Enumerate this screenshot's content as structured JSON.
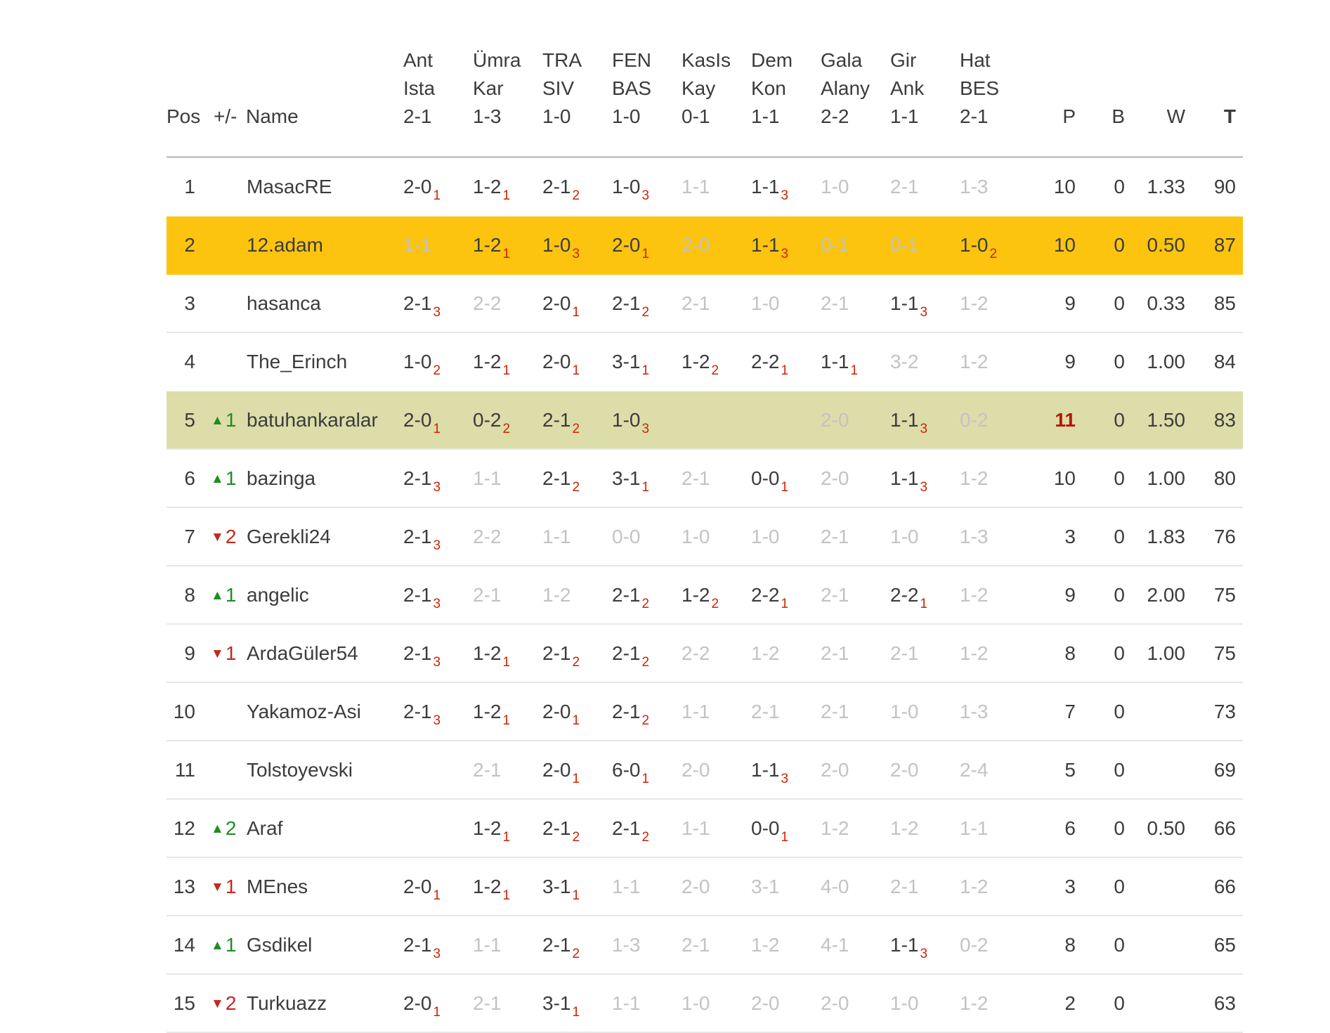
{
  "table": {
    "columns": {
      "pos": "Pos",
      "change": "+/-",
      "name": "Name",
      "p": "P",
      "b": "B",
      "w": "W",
      "t": "T"
    },
    "matches": [
      {
        "home": "Ant",
        "away": "Ista",
        "score": "2-1"
      },
      {
        "home": "Ümra",
        "away": "Kar",
        "score": "1-3"
      },
      {
        "home": "TRA",
        "away": "SIV",
        "score": "1-0"
      },
      {
        "home": "FEN",
        "away": "BAS",
        "score": "1-0"
      },
      {
        "home": "KasIs",
        "away": "Kay",
        "score": "0-1"
      },
      {
        "home": "Dem",
        "away": "Kon",
        "score": "1-1"
      },
      {
        "home": "Gala",
        "away": "Alany",
        "score": "2-2"
      },
      {
        "home": "Gir",
        "away": "Ank",
        "score": "1-1"
      },
      {
        "home": "Hat",
        "away": "BES",
        "score": "2-1"
      }
    ],
    "rows": [
      {
        "pos": "1",
        "change": null,
        "name": "MasacRE",
        "predictions": [
          [
            "2-0",
            1
          ],
          [
            "1-2",
            1
          ],
          [
            "2-1",
            2
          ],
          [
            "1-0",
            3
          ],
          [
            "1-1",
            0
          ],
          [
            "1-1",
            3
          ],
          [
            "1-0",
            0
          ],
          [
            "2-1",
            0
          ],
          [
            "1-3",
            0
          ]
        ],
        "p": "10",
        "b": "0",
        "w": "1.33",
        "t": "90",
        "highlight": null,
        "p_hot": false
      },
      {
        "pos": "2",
        "change": null,
        "name": "12.adam",
        "predictions": [
          [
            "1-1",
            0
          ],
          [
            "1-2",
            1
          ],
          [
            "1-0",
            3
          ],
          [
            "2-0",
            1
          ],
          [
            "2-0",
            0
          ],
          [
            "1-1",
            3
          ],
          [
            "0-1",
            0
          ],
          [
            "0-1",
            0
          ],
          [
            "1-0",
            2
          ]
        ],
        "p": "10",
        "b": "0",
        "w": "0.50",
        "t": "87",
        "highlight": "yellow",
        "p_hot": false
      },
      {
        "pos": "3",
        "change": null,
        "name": "hasanca",
        "predictions": [
          [
            "2-1",
            3
          ],
          [
            "2-2",
            0
          ],
          [
            "2-0",
            1
          ],
          [
            "2-1",
            2
          ],
          [
            "2-1",
            0
          ],
          [
            "1-0",
            0
          ],
          [
            "2-1",
            0
          ],
          [
            "1-1",
            3
          ],
          [
            "1-2",
            0
          ]
        ],
        "p": "9",
        "b": "0",
        "w": "0.33",
        "t": "85",
        "highlight": null,
        "p_hot": false
      },
      {
        "pos": "4",
        "change": null,
        "name": "The_Erinch",
        "predictions": [
          [
            "1-0",
            2
          ],
          [
            "1-2",
            1
          ],
          [
            "2-0",
            1
          ],
          [
            "3-1",
            1
          ],
          [
            "1-2",
            2
          ],
          [
            "2-2",
            1
          ],
          [
            "1-1",
            1
          ],
          [
            "3-2",
            0
          ],
          [
            "1-2",
            0
          ]
        ],
        "p": "9",
        "b": "0",
        "w": "1.00",
        "t": "84",
        "highlight": null,
        "p_hot": false
      },
      {
        "pos": "5",
        "change": {
          "dir": "up",
          "value": "1"
        },
        "name": "batuhankaralar",
        "predictions": [
          [
            "2-0",
            1
          ],
          [
            "0-2",
            2
          ],
          [
            "2-1",
            2
          ],
          [
            "1-0",
            3
          ],
          null,
          null,
          [
            "2-0",
            0
          ],
          [
            "1-1",
            3
          ],
          [
            "0-2",
            0
          ]
        ],
        "p": "11",
        "b": "0",
        "w": "1.50",
        "t": "83",
        "highlight": "green",
        "p_hot": true
      },
      {
        "pos": "6",
        "change": {
          "dir": "up",
          "value": "1"
        },
        "name": "bazinga",
        "predictions": [
          [
            "2-1",
            3
          ],
          [
            "1-1",
            0
          ],
          [
            "2-1",
            2
          ],
          [
            "3-1",
            1
          ],
          [
            "2-1",
            0
          ],
          [
            "0-0",
            1
          ],
          [
            "2-0",
            0
          ],
          [
            "1-1",
            3
          ],
          [
            "1-2",
            0
          ]
        ],
        "p": "10",
        "b": "0",
        "w": "1.00",
        "t": "80",
        "highlight": null,
        "p_hot": false
      },
      {
        "pos": "7",
        "change": {
          "dir": "down",
          "value": "2"
        },
        "name": "Gerekli24",
        "predictions": [
          [
            "2-1",
            3
          ],
          [
            "2-2",
            0
          ],
          [
            "1-1",
            0
          ],
          [
            "0-0",
            0
          ],
          [
            "1-0",
            0
          ],
          [
            "1-0",
            0
          ],
          [
            "2-1",
            0
          ],
          [
            "1-0",
            0
          ],
          [
            "1-3",
            0
          ]
        ],
        "p": "3",
        "b": "0",
        "w": "1.83",
        "t": "76",
        "highlight": null,
        "p_hot": false
      },
      {
        "pos": "8",
        "change": {
          "dir": "up",
          "value": "1"
        },
        "name": "angelic",
        "predictions": [
          [
            "2-1",
            3
          ],
          [
            "2-1",
            0
          ],
          [
            "1-2",
            0
          ],
          [
            "2-1",
            2
          ],
          [
            "1-2",
            2
          ],
          [
            "2-2",
            1
          ],
          [
            "2-1",
            0
          ],
          [
            "2-2",
            1
          ],
          [
            "1-2",
            0
          ]
        ],
        "p": "9",
        "b": "0",
        "w": "2.00",
        "t": "75",
        "highlight": null,
        "p_hot": false
      },
      {
        "pos": "9",
        "change": {
          "dir": "down",
          "value": "1"
        },
        "name": "ArdaGüler54",
        "predictions": [
          [
            "2-1",
            3
          ],
          [
            "1-2",
            1
          ],
          [
            "2-1",
            2
          ],
          [
            "2-1",
            2
          ],
          [
            "2-2",
            0
          ],
          [
            "1-2",
            0
          ],
          [
            "2-1",
            0
          ],
          [
            "2-1",
            0
          ],
          [
            "1-2",
            0
          ]
        ],
        "p": "8",
        "b": "0",
        "w": "1.00",
        "t": "75",
        "highlight": null,
        "p_hot": false
      },
      {
        "pos": "10",
        "change": null,
        "name": "Yakamoz-Asi",
        "predictions": [
          [
            "2-1",
            3
          ],
          [
            "1-2",
            1
          ],
          [
            "2-0",
            1
          ],
          [
            "2-1",
            2
          ],
          [
            "1-1",
            0
          ],
          [
            "2-1",
            0
          ],
          [
            "2-1",
            0
          ],
          [
            "1-0",
            0
          ],
          [
            "1-3",
            0
          ]
        ],
        "p": "7",
        "b": "0",
        "w": "",
        "t": "73",
        "highlight": null,
        "p_hot": false
      },
      {
        "pos": "11",
        "change": null,
        "name": "Tolstoyevski",
        "predictions": [
          null,
          [
            "2-1",
            0
          ],
          [
            "2-0",
            1
          ],
          [
            "6-0",
            1
          ],
          [
            "2-0",
            0
          ],
          [
            "1-1",
            3
          ],
          [
            "2-0",
            0
          ],
          [
            "2-0",
            0
          ],
          [
            "2-4",
            0
          ]
        ],
        "p": "5",
        "b": "0",
        "w": "",
        "t": "69",
        "highlight": null,
        "p_hot": false
      },
      {
        "pos": "12",
        "change": {
          "dir": "up",
          "value": "2"
        },
        "name": "Araf",
        "predictions": [
          null,
          [
            "1-2",
            1
          ],
          [
            "2-1",
            2
          ],
          [
            "2-1",
            2
          ],
          [
            "1-1",
            0
          ],
          [
            "0-0",
            1
          ],
          [
            "1-2",
            0
          ],
          [
            "1-2",
            0
          ],
          [
            "1-1",
            0
          ]
        ],
        "p": "6",
        "b": "0",
        "w": "0.50",
        "t": "66",
        "highlight": null,
        "p_hot": false
      },
      {
        "pos": "13",
        "change": {
          "dir": "down",
          "value": "1"
        },
        "name": "MEnes",
        "predictions": [
          [
            "2-0",
            1
          ],
          [
            "1-2",
            1
          ],
          [
            "3-1",
            1
          ],
          [
            "1-1",
            0
          ],
          [
            "2-0",
            0
          ],
          [
            "3-1",
            0
          ],
          [
            "4-0",
            0
          ],
          [
            "2-1",
            0
          ],
          [
            "1-2",
            0
          ]
        ],
        "p": "3",
        "b": "0",
        "w": "",
        "t": "66",
        "highlight": null,
        "p_hot": false
      },
      {
        "pos": "14",
        "change": {
          "dir": "up",
          "value": "1"
        },
        "name": "Gsdikel",
        "predictions": [
          [
            "2-1",
            3
          ],
          [
            "1-1",
            0
          ],
          [
            "2-1",
            2
          ],
          [
            "1-3",
            0
          ],
          [
            "2-1",
            0
          ],
          [
            "1-2",
            0
          ],
          [
            "4-1",
            0
          ],
          [
            "1-1",
            3
          ],
          [
            "0-2",
            0
          ]
        ],
        "p": "8",
        "b": "0",
        "w": "",
        "t": "65",
        "highlight": null,
        "p_hot": false
      },
      {
        "pos": "15",
        "change": {
          "dir": "down",
          "value": "2"
        },
        "name": "Turkuazz",
        "predictions": [
          [
            "2-0",
            1
          ],
          [
            "2-1",
            0
          ],
          [
            "3-1",
            1
          ],
          [
            "1-1",
            0
          ],
          [
            "1-0",
            0
          ],
          [
            "2-0",
            0
          ],
          [
            "2-0",
            0
          ],
          [
            "1-0",
            0
          ],
          [
            "1-2",
            0
          ]
        ],
        "p": "2",
        "b": "0",
        "w": "",
        "t": "63",
        "highlight": null,
        "p_hot": false
      }
    ]
  },
  "icons": {
    "rank_up": "▲",
    "rank_down": "▼"
  },
  "colors": {
    "selected_row_bg": "#fcc40e",
    "mover_row_bg": "#dcdda9",
    "points_subscript": "#cc2404",
    "rank_up": "#1e8e1e",
    "rank_down": "#c3291b",
    "missed_prediction": "#c3c3c3",
    "text": "#3c3c3c",
    "hot_points": "#b3170b"
  }
}
